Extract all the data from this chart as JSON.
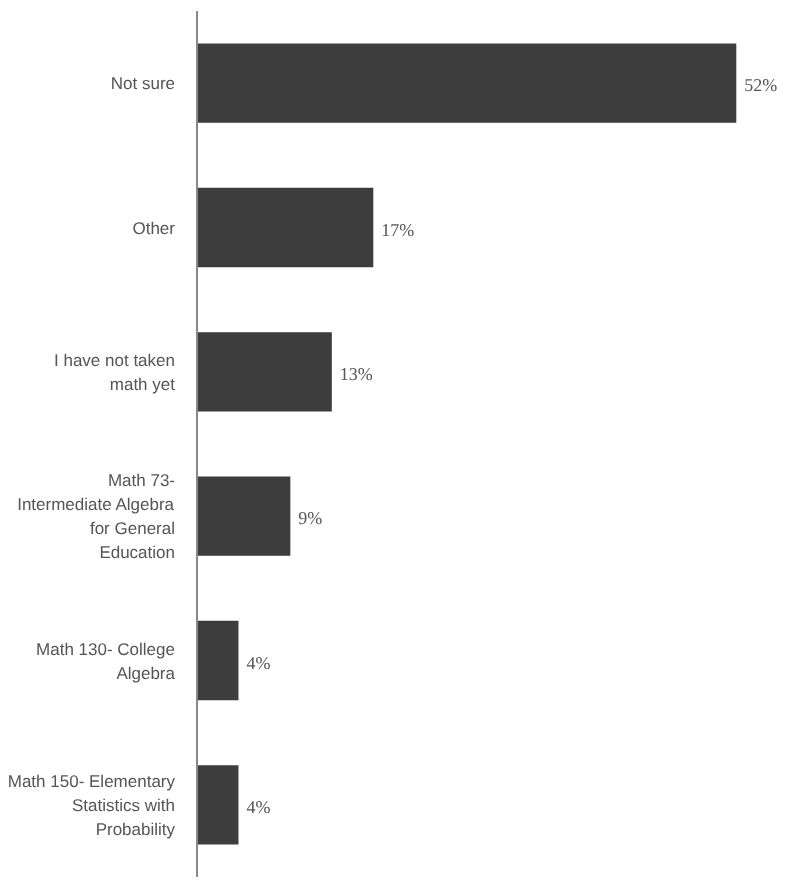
{
  "chart_data": {
    "type": "bar",
    "orientation": "horizontal",
    "categories": [
      "Not sure",
      "Other",
      "I have not taken math yet",
      "Math 73- Intermediate Algebra for General Education",
      "Math 130- College Algebra",
      "Math 150- Elementary Statistics with Probability"
    ],
    "values": [
      52,
      17,
      13,
      9,
      4,
      4
    ],
    "value_labels": [
      "52%",
      "17%",
      "13%",
      "9%",
      "4%",
      "4%"
    ],
    "color": "#3d3d3d",
    "grid": false
  }
}
